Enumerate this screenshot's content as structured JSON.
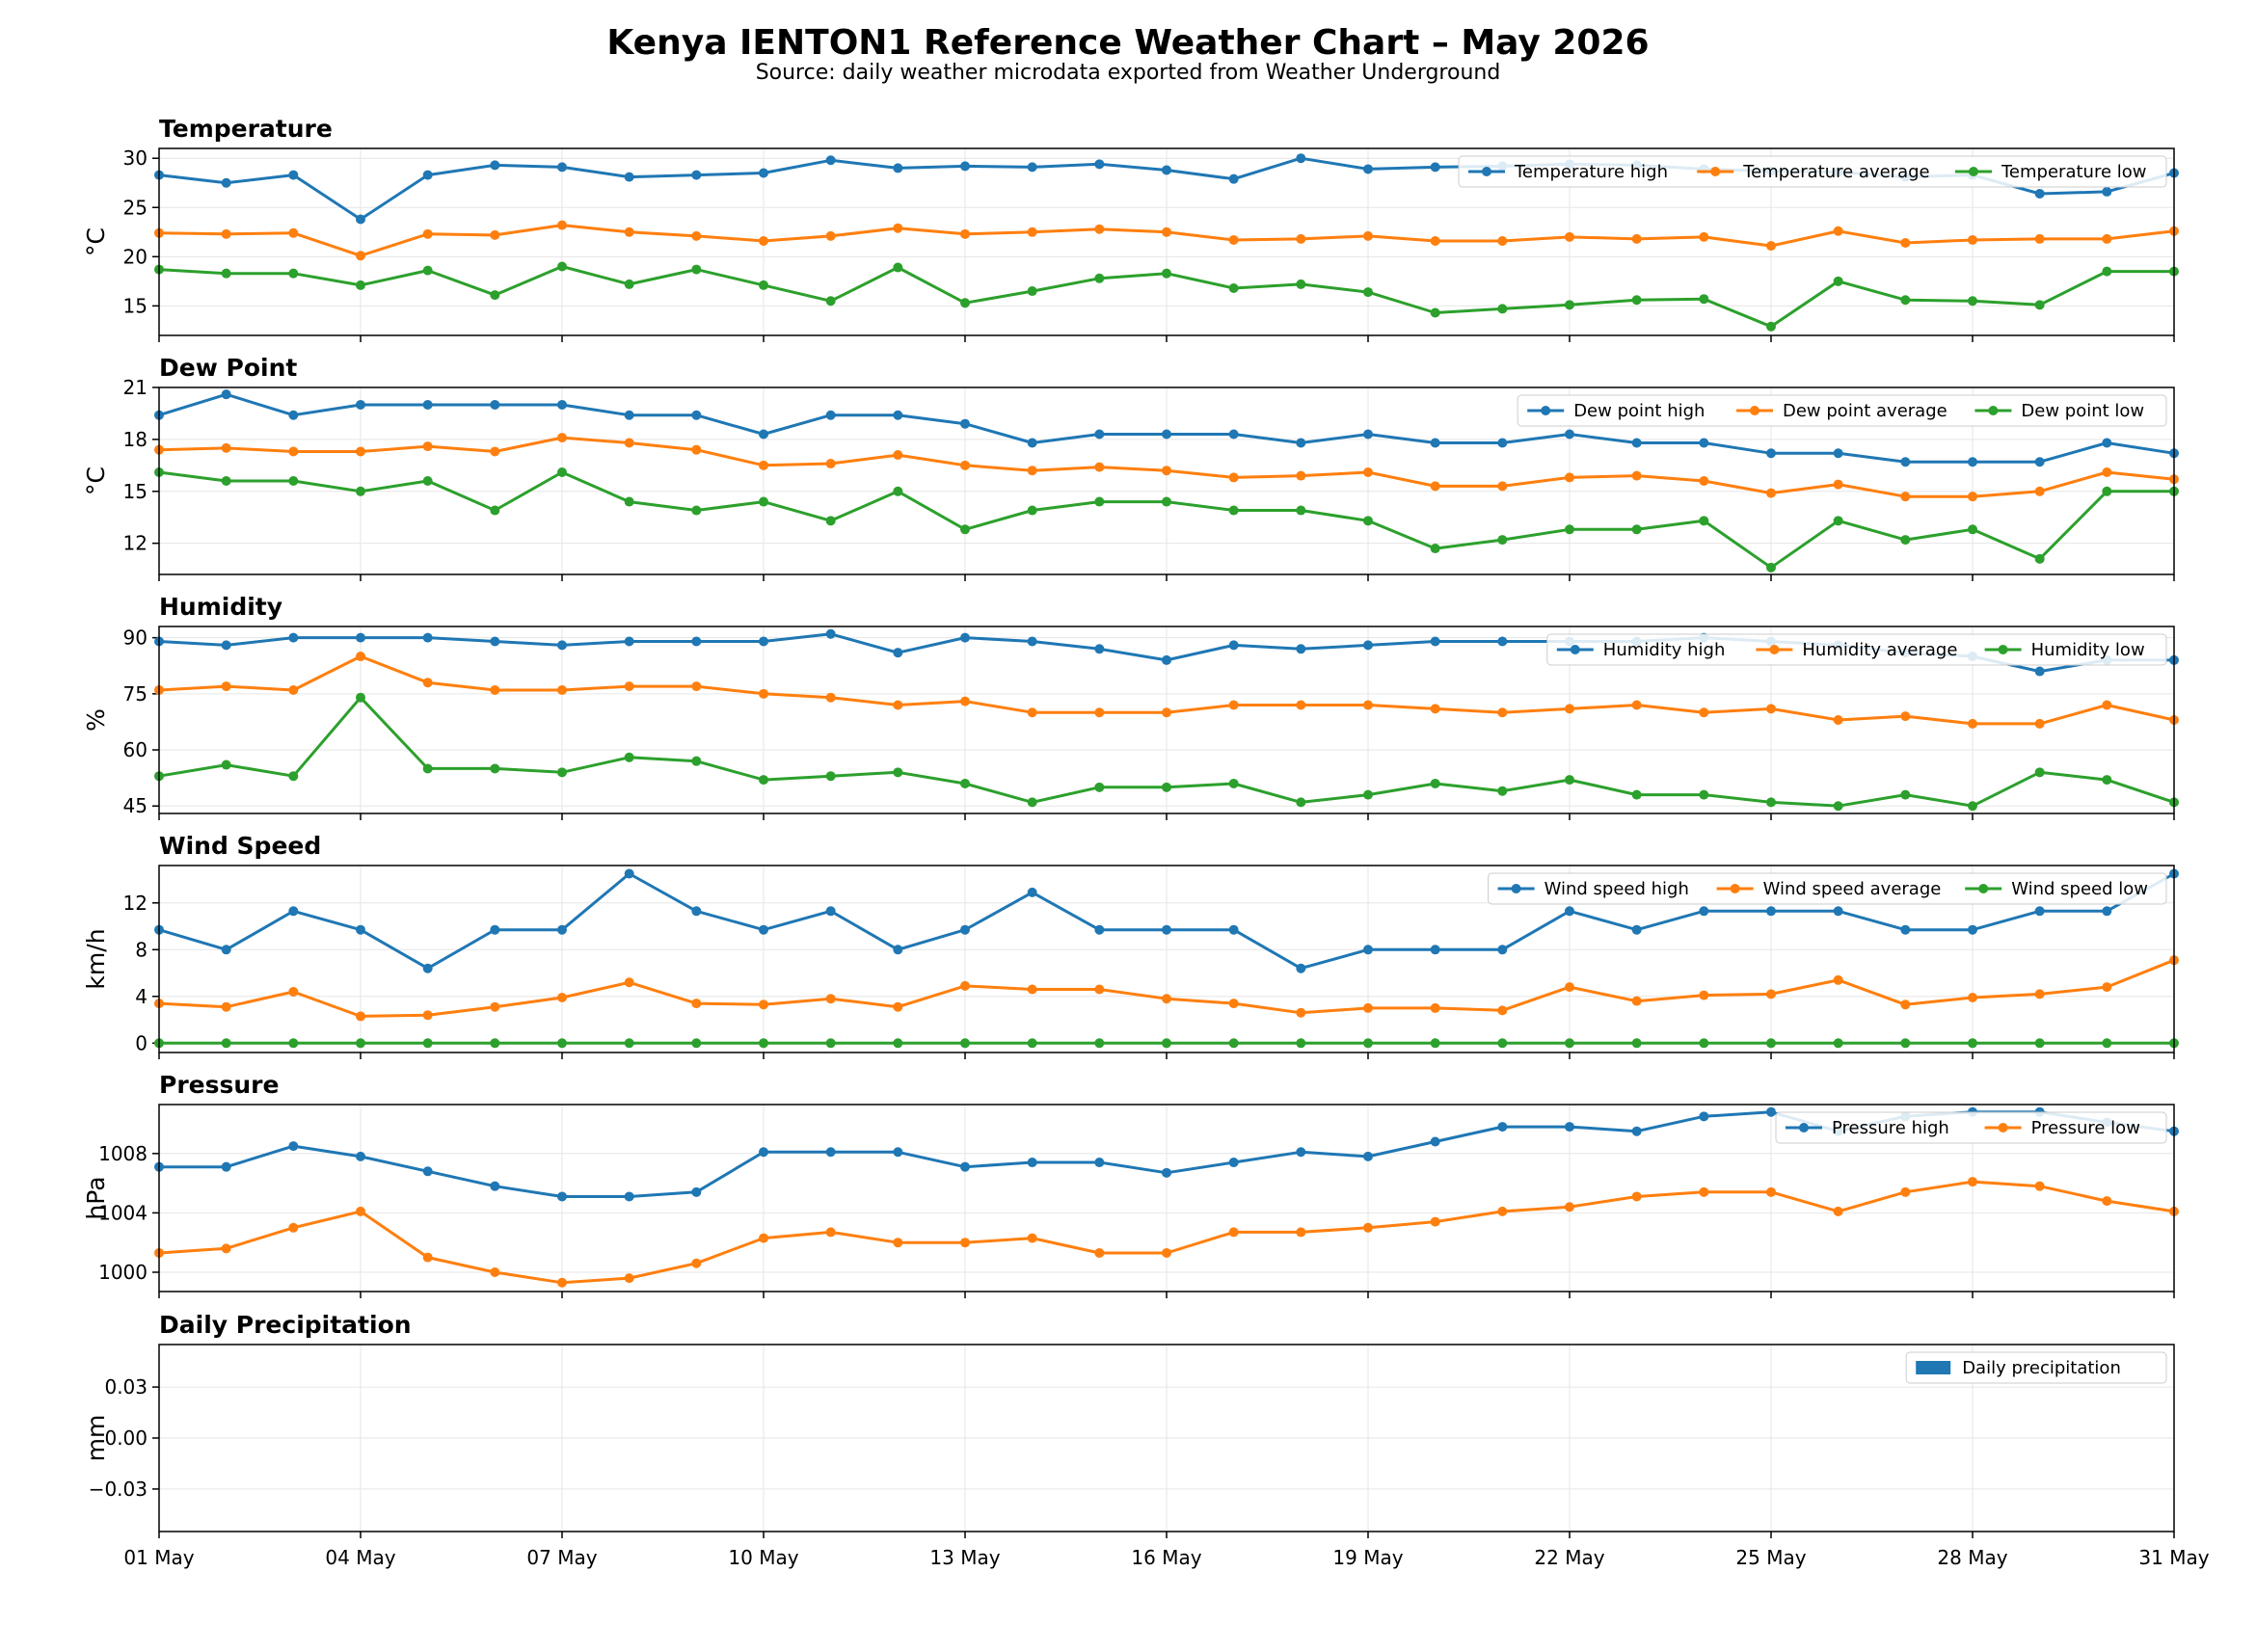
{
  "title": "Kenya IENTON1 Reference Weather Chart – May 2026",
  "subtitle": "Source: daily weather microdata exported from Weather Underground",
  "colors": {
    "blue": "#1f77b4",
    "orange": "#ff7f0e",
    "green": "#2ca02c",
    "grid": "#e6e6e6"
  },
  "chart_data": [
    {
      "type": "line",
      "title": "Temperature",
      "ylabel": "°C",
      "ylim": [
        12,
        31
      ],
      "yticks": [
        15,
        20,
        25,
        30
      ],
      "grid": true,
      "legend": "top-right",
      "x": [
        "01 May",
        "02 May",
        "03 May",
        "04 May",
        "05 May",
        "06 May",
        "07 May",
        "08 May",
        "09 May",
        "10 May",
        "11 May",
        "12 May",
        "13 May",
        "14 May",
        "15 May",
        "16 May",
        "17 May",
        "18 May",
        "19 May",
        "20 May",
        "21 May",
        "22 May",
        "23 May",
        "24 May",
        "25 May",
        "26 May",
        "27 May",
        "28 May",
        "29 May",
        "30 May",
        "31 May"
      ],
      "series": [
        {
          "name": "Temperature high",
          "color": "#1f77b4",
          "values": [
            28.3,
            27.5,
            28.3,
            23.8,
            28.3,
            29.3,
            29.1,
            28.1,
            28.3,
            28.5,
            29.8,
            29.0,
            29.2,
            29.1,
            29.4,
            28.8,
            27.9,
            30.0,
            28.9,
            29.1,
            29.2,
            29.4,
            29.3,
            28.9,
            28.7,
            28.6,
            28.1,
            28.3,
            26.4,
            26.6,
            28.5
          ]
        },
        {
          "name": "Temperature average",
          "color": "#ff7f0e",
          "values": [
            22.4,
            22.3,
            22.4,
            20.1,
            22.3,
            22.2,
            23.2,
            22.5,
            22.1,
            21.6,
            22.1,
            22.9,
            22.3,
            22.5,
            22.8,
            22.5,
            21.7,
            21.8,
            22.1,
            21.6,
            21.6,
            22.0,
            21.8,
            22.0,
            21.1,
            22.6,
            21.4,
            21.7,
            21.8,
            21.8,
            22.6
          ]
        },
        {
          "name": "Temperature low",
          "color": "#2ca02c",
          "values": [
            18.7,
            18.3,
            18.3,
            17.1,
            18.6,
            16.1,
            19.0,
            17.2,
            18.7,
            17.1,
            15.5,
            18.9,
            15.3,
            16.5,
            17.8,
            18.3,
            16.8,
            17.2,
            16.4,
            14.3,
            14.7,
            15.1,
            15.6,
            15.7,
            12.9,
            17.5,
            15.6,
            15.5,
            15.1,
            18.5,
            18.5
          ]
        }
      ]
    },
    {
      "type": "line",
      "title": "Dew Point",
      "ylabel": "°C",
      "ylim": [
        10.2,
        21.0
      ],
      "yticks": [
        12,
        15,
        18,
        21
      ],
      "grid": true,
      "legend": "top-right",
      "x": [
        "01 May",
        "02 May",
        "03 May",
        "04 May",
        "05 May",
        "06 May",
        "07 May",
        "08 May",
        "09 May",
        "10 May",
        "11 May",
        "12 May",
        "13 May",
        "14 May",
        "15 May",
        "16 May",
        "17 May",
        "18 May",
        "19 May",
        "20 May",
        "21 May",
        "22 May",
        "23 May",
        "24 May",
        "25 May",
        "26 May",
        "27 May",
        "28 May",
        "29 May",
        "30 May",
        "31 May"
      ],
      "series": [
        {
          "name": "Dew point high",
          "color": "#1f77b4",
          "values": [
            19.4,
            20.6,
            19.4,
            20.0,
            20.0,
            20.0,
            20.0,
            19.4,
            19.4,
            18.3,
            19.4,
            19.4,
            18.9,
            17.8,
            18.3,
            18.3,
            18.3,
            17.8,
            18.3,
            17.8,
            17.8,
            18.3,
            17.8,
            17.8,
            17.2,
            17.2,
            16.7,
            16.7,
            16.7,
            17.8,
            17.2
          ]
        },
        {
          "name": "Dew point average",
          "color": "#ff7f0e",
          "values": [
            17.4,
            17.5,
            17.3,
            17.3,
            17.6,
            17.3,
            18.1,
            17.8,
            17.4,
            16.5,
            16.6,
            17.1,
            16.5,
            16.2,
            16.4,
            16.2,
            15.8,
            15.9,
            16.1,
            15.3,
            15.3,
            15.8,
            15.9,
            15.6,
            14.9,
            15.4,
            14.7,
            14.7,
            15.0,
            16.1,
            15.7
          ]
        },
        {
          "name": "Dew point low",
          "color": "#2ca02c",
          "values": [
            16.1,
            15.6,
            15.6,
            15.0,
            15.6,
            13.9,
            16.1,
            14.4,
            13.9,
            14.4,
            13.3,
            15.0,
            12.8,
            13.9,
            14.4,
            14.4,
            13.9,
            13.9,
            13.3,
            11.7,
            12.2,
            12.8,
            12.8,
            13.3,
            10.6,
            13.3,
            12.2,
            12.8,
            11.1,
            15.0,
            15.0
          ]
        }
      ]
    },
    {
      "type": "line",
      "title": "Humidity",
      "ylabel": "%",
      "ylim": [
        43,
        93
      ],
      "yticks": [
        45,
        60,
        75,
        90
      ],
      "grid": true,
      "legend": "top-right",
      "x": [
        "01 May",
        "02 May",
        "03 May",
        "04 May",
        "05 May",
        "06 May",
        "07 May",
        "08 May",
        "09 May",
        "10 May",
        "11 May",
        "12 May",
        "13 May",
        "14 May",
        "15 May",
        "16 May",
        "17 May",
        "18 May",
        "19 May",
        "20 May",
        "21 May",
        "22 May",
        "23 May",
        "24 May",
        "25 May",
        "26 May",
        "27 May",
        "28 May",
        "29 May",
        "30 May",
        "31 May"
      ],
      "series": [
        {
          "name": "Humidity high",
          "color": "#1f77b4",
          "values": [
            89,
            88,
            90,
            90,
            90,
            89,
            88,
            89,
            89,
            89,
            91,
            86,
            90,
            89,
            87,
            84,
            88,
            87,
            88,
            89,
            89,
            89,
            89,
            90,
            89,
            88,
            86,
            85,
            81,
            84,
            84
          ]
        },
        {
          "name": "Humidity average",
          "color": "#ff7f0e",
          "values": [
            76,
            77,
            76,
            85,
            78,
            76,
            76,
            77,
            77,
            75,
            74,
            72,
            73,
            70,
            70,
            70,
            72,
            72,
            72,
            71,
            70,
            71,
            72,
            70,
            71,
            68,
            69,
            67,
            67,
            72,
            68
          ]
        },
        {
          "name": "Humidity low",
          "color": "#2ca02c",
          "values": [
            53,
            56,
            53,
            74,
            55,
            55,
            54,
            58,
            57,
            52,
            53,
            54,
            51,
            46,
            50,
            50,
            51,
            46,
            48,
            51,
            49,
            52,
            48,
            48,
            46,
            45,
            48,
            45,
            54,
            52,
            46
          ]
        }
      ]
    },
    {
      "type": "line",
      "title": "Wind Speed",
      "ylabel": "km/h",
      "ylim": [
        -0.8,
        15.2
      ],
      "yticks": [
        0,
        4,
        8,
        12
      ],
      "grid": true,
      "legend": "top-right",
      "x": [
        "01 May",
        "02 May",
        "03 May",
        "04 May",
        "05 May",
        "06 May",
        "07 May",
        "08 May",
        "09 May",
        "10 May",
        "11 May",
        "12 May",
        "13 May",
        "14 May",
        "15 May",
        "16 May",
        "17 May",
        "18 May",
        "19 May",
        "20 May",
        "21 May",
        "22 May",
        "23 May",
        "24 May",
        "25 May",
        "26 May",
        "27 May",
        "28 May",
        "29 May",
        "30 May",
        "31 May"
      ],
      "series": [
        {
          "name": "Wind speed high",
          "color": "#1f77b4",
          "values": [
            9.7,
            8.0,
            11.3,
            9.7,
            6.4,
            9.7,
            9.7,
            14.5,
            11.3,
            9.7,
            11.3,
            8.0,
            9.7,
            12.9,
            9.7,
            9.7,
            9.7,
            6.4,
            8.0,
            8.0,
            8.0,
            11.3,
            9.7,
            11.3,
            11.3,
            11.3,
            9.7,
            9.7,
            11.3,
            11.3,
            14.5
          ]
        },
        {
          "name": "Wind speed average",
          "color": "#ff7f0e",
          "values": [
            3.4,
            3.1,
            4.4,
            2.3,
            2.4,
            3.1,
            3.9,
            5.2,
            3.4,
            3.3,
            3.8,
            3.1,
            4.9,
            4.6,
            4.6,
            3.8,
            3.4,
            2.6,
            3.0,
            3.0,
            2.8,
            4.8,
            3.6,
            4.1,
            4.2,
            5.4,
            3.3,
            3.9,
            4.2,
            4.8,
            7.1
          ]
        },
        {
          "name": "Wind speed low",
          "color": "#2ca02c",
          "values": [
            0,
            0,
            0,
            0,
            0,
            0,
            0,
            0,
            0,
            0,
            0,
            0,
            0,
            0,
            0,
            0,
            0,
            0,
            0,
            0,
            0,
            0,
            0,
            0,
            0,
            0,
            0,
            0,
            0,
            0,
            0
          ]
        }
      ]
    },
    {
      "type": "line",
      "title": "Pressure",
      "ylabel": "hPa",
      "ylim": [
        998.7,
        1011.3
      ],
      "yticks": [
        1000,
        1004,
        1008
      ],
      "grid": true,
      "legend": "top-right",
      "x": [
        "01 May",
        "02 May",
        "03 May",
        "04 May",
        "05 May",
        "06 May",
        "07 May",
        "08 May",
        "09 May",
        "10 May",
        "11 May",
        "12 May",
        "13 May",
        "14 May",
        "15 May",
        "16 May",
        "17 May",
        "18 May",
        "19 May",
        "20 May",
        "21 May",
        "22 May",
        "23 May",
        "24 May",
        "25 May",
        "26 May",
        "27 May",
        "28 May",
        "29 May",
        "30 May",
        "31 May"
      ],
      "series": [
        {
          "name": "Pressure high",
          "color": "#1f77b4",
          "values": [
            1007.1,
            1007.1,
            1008.5,
            1007.8,
            1006.8,
            1005.8,
            1005.1,
            1005.1,
            1005.4,
            1008.1,
            1008.1,
            1008.1,
            1007.1,
            1007.4,
            1007.4,
            1006.7,
            1007.4,
            1008.1,
            1007.8,
            1008.8,
            1009.8,
            1009.8,
            1009.5,
            1010.5,
            1010.8,
            1009.5,
            1010.5,
            1010.8,
            1010.8,
            1010.1,
            1009.5
          ]
        },
        {
          "name": "Pressure low",
          "color": "#ff7f0e",
          "values": [
            1001.3,
            1001.6,
            1003.0,
            1004.1,
            1001.0,
            1000.0,
            999.3,
            999.6,
            1000.6,
            1002.3,
            1002.7,
            1002.0,
            1002.0,
            1002.3,
            1001.3,
            1001.3,
            1002.7,
            1002.7,
            1003.0,
            1003.4,
            1004.1,
            1004.4,
            1005.1,
            1005.4,
            1005.4,
            1004.1,
            1005.4,
            1006.1,
            1005.8,
            1004.8,
            1004.1
          ]
        }
      ]
    },
    {
      "type": "bar",
      "title": "Daily Precipitation",
      "ylabel": "mm",
      "ylim": [
        -0.055,
        0.055
      ],
      "yticks": [
        -0.03,
        0.0,
        0.03
      ],
      "ytick_labels": [
        "−0.03",
        "0.00",
        "0.03"
      ],
      "grid": true,
      "legend": "top-right",
      "x": [
        "01 May",
        "02 May",
        "03 May",
        "04 May",
        "05 May",
        "06 May",
        "07 May",
        "08 May",
        "09 May",
        "10 May",
        "11 May",
        "12 May",
        "13 May",
        "14 May",
        "15 May",
        "16 May",
        "17 May",
        "18 May",
        "19 May",
        "20 May",
        "21 May",
        "22 May",
        "23 May",
        "24 May",
        "25 May",
        "26 May",
        "27 May",
        "28 May",
        "29 May",
        "30 May",
        "31 May"
      ],
      "series": [
        {
          "name": "Daily precipitation",
          "color": "#1f77b4",
          "values": [
            0,
            0,
            0,
            0,
            0,
            0,
            0,
            0,
            0,
            0,
            0,
            0,
            0,
            0,
            0,
            0,
            0,
            0,
            0,
            0,
            0,
            0,
            0,
            0,
            0,
            0,
            0,
            0,
            0,
            0,
            0
          ]
        }
      ]
    }
  ],
  "x_tick_labels": [
    "01 May",
    "04 May",
    "07 May",
    "10 May",
    "13 May",
    "16 May",
    "19 May",
    "22 May",
    "25 May",
    "28 May",
    "31 May"
  ]
}
